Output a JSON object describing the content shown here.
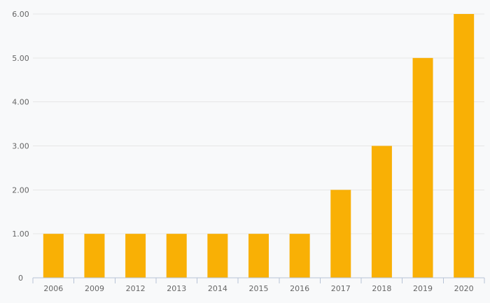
{
  "chart_data": {
    "type": "bar",
    "title": "",
    "xlabel": "",
    "ylabel": "",
    "categories": [
      "2006",
      "2009",
      "2012",
      "2013",
      "2014",
      "2015",
      "2016",
      "2017",
      "2018",
      "2019",
      "2020"
    ],
    "values": [
      1,
      1,
      1,
      1,
      1,
      1,
      1,
      2,
      3,
      5,
      6
    ],
    "ylim": [
      0,
      6
    ],
    "yticks": [
      {
        "value": 0,
        "label": "0"
      },
      {
        "value": 1,
        "label": "1.00"
      },
      {
        "value": 2,
        "label": "2.00"
      },
      {
        "value": 3,
        "label": "3.00"
      },
      {
        "value": 4,
        "label": "4.00"
      },
      {
        "value": 5,
        "label": "5.00"
      },
      {
        "value": 6,
        "label": "6.00"
      }
    ],
    "grid": true,
    "legend": false,
    "colors": {
      "bar": "#f9b005",
      "gridline": "#e6e6e6",
      "axis_line": "#b7c3d6",
      "tick": "#b7c3d6",
      "label_text": "#666666",
      "background": "#f8f9fa"
    }
  }
}
